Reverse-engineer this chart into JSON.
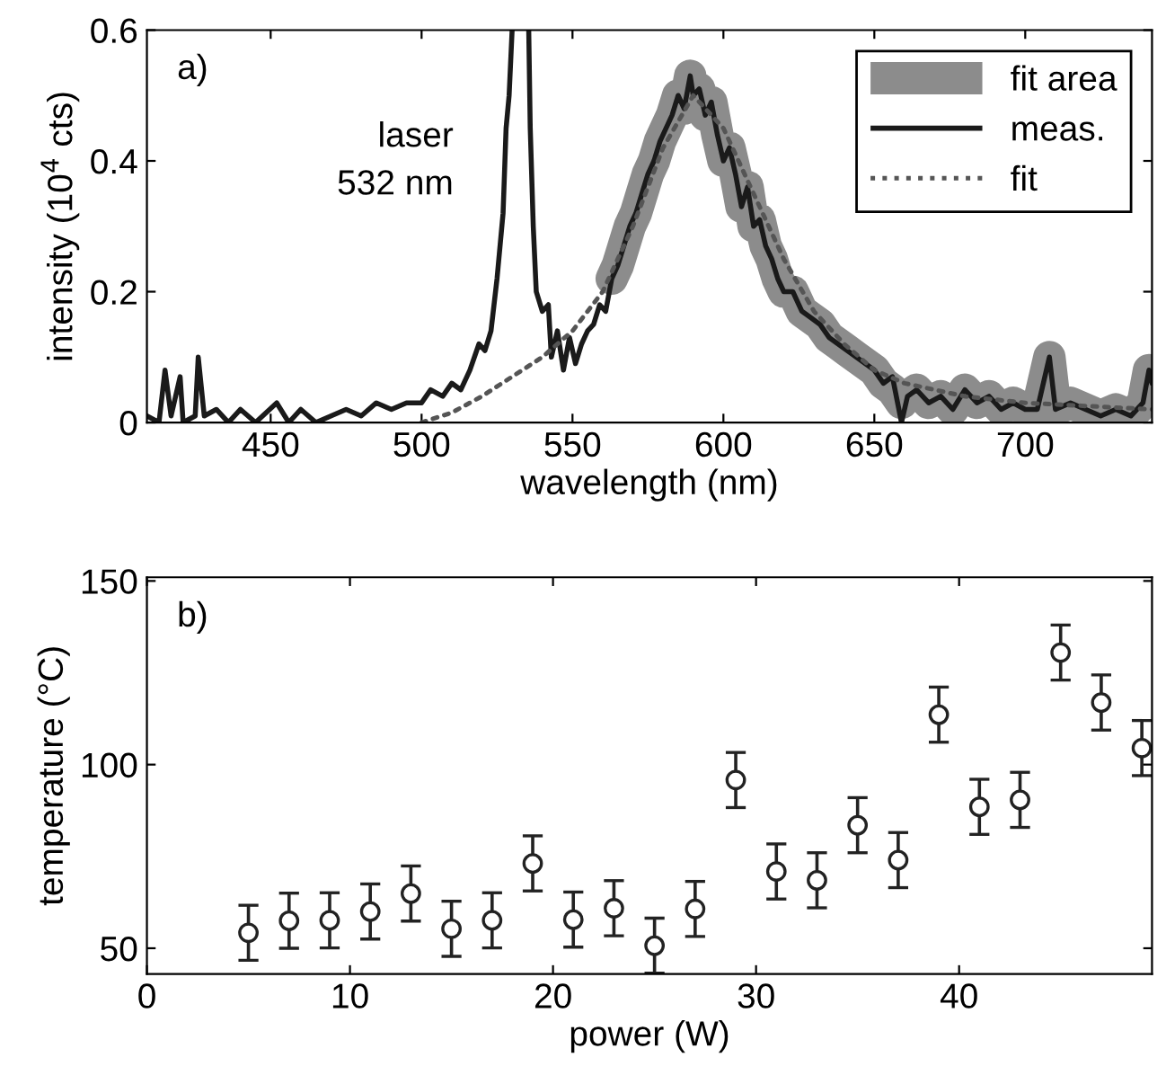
{
  "chart_data": [
    {
      "type": "line",
      "xlabel": "wavelength (nm)",
      "ylabel": "intensity (10$^{4}$ cts)",
      "xlim": [
        409,
        742
      ],
      "ylim": [
        0,
        0.6
      ],
      "xticks": [
        450,
        500,
        550,
        600,
        650,
        700
      ],
      "yticks": [
        0,
        0.2,
        0.4,
        0.6
      ],
      "legend": "top right",
      "annotations": [
        "a)",
        "laser\n532 nm"
      ],
      "series": [
        {
          "name": "fit area",
          "color": "#8c8c8c",
          "line_style": "solid",
          "x": [
            563,
            565,
            567,
            569,
            571,
            573,
            575,
            577,
            579,
            581,
            583,
            585,
            587,
            589,
            590,
            592,
            594,
            596,
            598,
            600,
            602,
            604,
            606,
            608,
            610,
            612,
            614,
            616,
            618,
            620,
            623,
            626,
            629,
            632,
            635,
            638,
            641,
            644,
            647,
            650,
            653,
            656,
            659,
            661,
            664,
            668,
            672,
            676,
            680,
            684,
            688,
            692,
            696,
            700,
            704,
            708,
            710,
            715,
            720,
            725,
            730,
            735,
            739,
            741,
            742
          ],
          "values": [
            0.22,
            0.24,
            0.27,
            0.3,
            0.32,
            0.35,
            0.38,
            0.4,
            0.43,
            0.45,
            0.47,
            0.5,
            0.48,
            0.53,
            0.5,
            0.51,
            0.47,
            0.49,
            0.44,
            0.4,
            0.42,
            0.38,
            0.33,
            0.36,
            0.3,
            0.31,
            0.27,
            0.25,
            0.22,
            0.2,
            0.2,
            0.17,
            0.16,
            0.15,
            0.13,
            0.12,
            0.11,
            0.1,
            0.09,
            0.08,
            0.06,
            0.05,
            0.03,
            0.04,
            0.05,
            0.03,
            0.04,
            0.02,
            0.05,
            0.03,
            0.04,
            0.02,
            0.03,
            0.02,
            0.02,
            0.1,
            0.02,
            0.03,
            0.02,
            0.01,
            0.02,
            0.01,
            0.03,
            0.08,
            0.06
          ]
        },
        {
          "name": "meas.",
          "color": "#1a1a1a",
          "line_style": "solid",
          "x": [
            409,
            413,
            415,
            417,
            420,
            421,
            425,
            426,
            428,
            432,
            436,
            440,
            445,
            452,
            456,
            460,
            465,
            470,
            475,
            480,
            485,
            490,
            495,
            500,
            503,
            507,
            510,
            513,
            516,
            519,
            521,
            523,
            525,
            527,
            528,
            529,
            530,
            533,
            535.5,
            536,
            537,
            538,
            540,
            542,
            543,
            545,
            547,
            549,
            551,
            553,
            555,
            557,
            559,
            561,
            563,
            565,
            567,
            569,
            571,
            573,
            575,
            577,
            579,
            581,
            583,
            585,
            587,
            589,
            590,
            592,
            594,
            596,
            598,
            600,
            602,
            604,
            606,
            608,
            610,
            612,
            614,
            616,
            618,
            620,
            623,
            626,
            629,
            632,
            635,
            638,
            641,
            644,
            647,
            650,
            653,
            656,
            659,
            661,
            664,
            668,
            672,
            676,
            680,
            684,
            688,
            692,
            696,
            700,
            704,
            708,
            710,
            715,
            720,
            725,
            730,
            735,
            739,
            741,
            742
          ],
          "values": [
            0.01,
            0.0,
            0.08,
            0.01,
            0.07,
            0.0,
            0.01,
            0.1,
            0.01,
            0.02,
            0.0,
            0.02,
            0.0,
            0.03,
            0.0,
            0.02,
            0.0,
            0.01,
            0.02,
            0.01,
            0.03,
            0.02,
            0.03,
            0.03,
            0.05,
            0.04,
            0.06,
            0.05,
            0.08,
            0.12,
            0.11,
            0.14,
            0.22,
            0.32,
            0.45,
            0.5,
            0.6,
            null,
            0.6,
            0.45,
            0.3,
            0.2,
            0.17,
            0.18,
            0.1,
            0.14,
            0.08,
            0.13,
            0.09,
            0.12,
            0.14,
            0.15,
            0.18,
            0.17,
            0.22,
            0.24,
            0.27,
            0.3,
            0.32,
            0.35,
            0.38,
            0.4,
            0.43,
            0.45,
            0.47,
            0.5,
            0.48,
            0.53,
            0.5,
            0.51,
            0.47,
            0.49,
            0.44,
            0.4,
            0.42,
            0.38,
            0.33,
            0.36,
            0.3,
            0.31,
            0.27,
            0.25,
            0.22,
            0.2,
            0.2,
            0.17,
            0.16,
            0.15,
            0.13,
            0.12,
            0.11,
            0.1,
            0.09,
            0.08,
            0.06,
            0.07,
            0.0,
            0.04,
            0.05,
            0.03,
            0.04,
            0.02,
            0.05,
            0.03,
            0.04,
            0.02,
            0.03,
            0.02,
            0.02,
            0.1,
            0.02,
            0.03,
            0.02,
            0.01,
            0.02,
            0.01,
            0.03,
            0.08,
            0.06
          ]
        },
        {
          "name": "fit",
          "color": "#555555",
          "line_style": "dotted",
          "x": [
            500,
            510,
            520,
            530,
            540,
            550,
            560,
            570,
            580,
            590,
            600,
            610,
            620,
            630,
            640,
            650,
            660,
            680,
            700,
            742
          ],
          "values": [
            0.0,
            0.015,
            0.04,
            0.07,
            0.1,
            0.14,
            0.2,
            0.3,
            0.42,
            0.5,
            0.45,
            0.35,
            0.25,
            0.17,
            0.12,
            0.08,
            0.06,
            0.04,
            0.03,
            0.02
          ]
        }
      ]
    },
    {
      "type": "scatter",
      "xlabel": "power (W)",
      "ylabel": "temperature (°C)",
      "xlim": [
        0,
        49.5
      ],
      "ylim": [
        43,
        151
      ],
      "xticks": [
        0,
        10,
        20,
        30,
        40
      ],
      "yticks": [
        50,
        100,
        150
      ],
      "marker": "circle",
      "annotations": [
        "b)"
      ],
      "series": [
        {
          "color": "#222222",
          "x": [
            5,
            7,
            9,
            11,
            13,
            15,
            17,
            19,
            21,
            23,
            25,
            27,
            29,
            31,
            33,
            35,
            37,
            39,
            41,
            43,
            45,
            47,
            49
          ],
          "values": [
            54.2,
            57.5,
            57.6,
            60,
            64.9,
            55.3,
            57.6,
            73.1,
            57.8,
            60.9,
            50.7,
            60.7,
            95.8,
            70.9,
            68.5,
            83.5,
            74,
            113.6,
            88.5,
            90.4,
            130.5,
            116.9,
            104.5
          ],
          "errors": [
            7.5,
            7.5,
            7.5,
            7.5,
            7.5,
            7.5,
            7.5,
            7.5,
            7.5,
            7.5,
            7.5,
            7.5,
            7.5,
            7.5,
            7.5,
            7.5,
            7.5,
            7.5,
            7.5,
            7.5,
            7.5,
            7.5,
            7.5
          ]
        }
      ]
    }
  ]
}
